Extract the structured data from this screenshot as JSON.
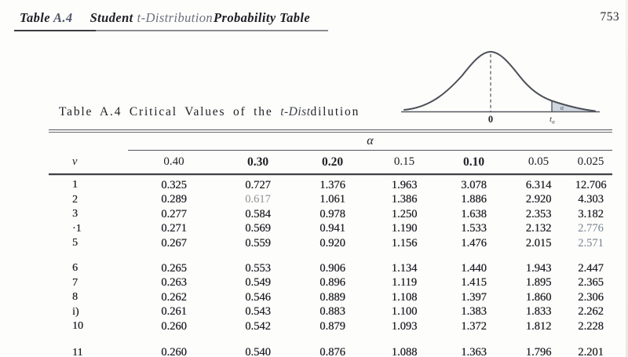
{
  "running_head": {
    "word_table": "Table",
    "word_a4": "A.4",
    "word_student": "Student",
    "word_dist": "t-Distribution",
    "word_prob": "Probability Table",
    "page_number": "753"
  },
  "figure": {
    "zero_label": "0",
    "t_label": "t",
    "t_sub": "α",
    "alpha_label": "α",
    "curve_color": "#4d5058",
    "shade_color": "#cfd6df"
  },
  "table": {
    "title_prefix": "Table A.4 Critical Values of the ",
    "title_italic": "t-Dist",
    "title_suffix": "dilution",
    "alpha_header": "α",
    "v_header": "ν",
    "columns": [
      {
        "label": "0.40",
        "bold": false
      },
      {
        "label": "0.30",
        "bold": true
      },
      {
        "label": "0.20",
        "bold": true
      },
      {
        "label": "0.15",
        "bold": false
      },
      {
        "label": "0.10",
        "bold": true
      },
      {
        "label": "0.05",
        "bold": false
      },
      {
        "label": "0.025",
        "bold": false
      }
    ],
    "rows": [
      {
        "v": "1",
        "values": [
          "0.325",
          "0.727",
          "1.376",
          "1.963",
          "3.078",
          "6.314",
          "12.706"
        ],
        "faded_gray": [],
        "faded_blue": []
      },
      {
        "v": "2",
        "values": [
          "0.289",
          "0.617",
          "1.061",
          "1.386",
          "1.886",
          "2.920",
          "4.303"
        ],
        "faded_gray": [
          1
        ],
        "faded_blue": []
      },
      {
        "v": "3",
        "values": [
          "0.277",
          "0.584",
          "0.978",
          "1.250",
          "1.638",
          "2.353",
          "3.182"
        ],
        "faded_gray": [],
        "faded_blue": []
      },
      {
        "v": "·1",
        "values": [
          "0.271",
          "0.569",
          "0.941",
          "1.190",
          "1.533",
          "2.132",
          "2.776"
        ],
        "faded_gray": [],
        "faded_blue": [
          6
        ]
      },
      {
        "v": "5",
        "values": [
          "0.267",
          "0.559",
          "0.920",
          "1.156",
          "1.476",
          "2.015",
          "2.571"
        ],
        "faded_gray": [],
        "faded_blue": [
          6
        ]
      },
      {
        "v": "6",
        "values": [
          "0.265",
          "0.553",
          "0.906",
          "1.134",
          "1.440",
          "1.943",
          "2.447"
        ],
        "faded_gray": [],
        "faded_blue": []
      },
      {
        "v": "7",
        "values": [
          "0.263",
          "0.549",
          "0.896",
          "1.119",
          "1.415",
          "1.895",
          "2.365"
        ],
        "faded_gray": [],
        "faded_blue": []
      },
      {
        "v": "8",
        "values": [
          "0.262",
          "0.546",
          "0.889",
          "1.108",
          "1.397",
          "1.860",
          "2.306"
        ],
        "faded_gray": [],
        "faded_blue": []
      },
      {
        "v": "i)",
        "values": [
          "0.261",
          "0.543",
          "0.883",
          "1.100",
          "1.383",
          "1.833",
          "2.262"
        ],
        "faded_gray": [],
        "faded_blue": []
      },
      {
        "v": "10",
        "values": [
          "0.260",
          "0.542",
          "0.879",
          "1.093",
          "1.372",
          "1.812",
          "2.228"
        ],
        "faded_gray": [],
        "faded_blue": []
      },
      {
        "v": "11",
        "values": [
          "0.260",
          "0.540",
          "0.876",
          "1.088",
          "1.363",
          "1.796",
          "2.201"
        ],
        "faded_gray": [],
        "faded_blue": []
      }
    ],
    "spacer_after_row_index": [
      4,
      9
    ]
  }
}
